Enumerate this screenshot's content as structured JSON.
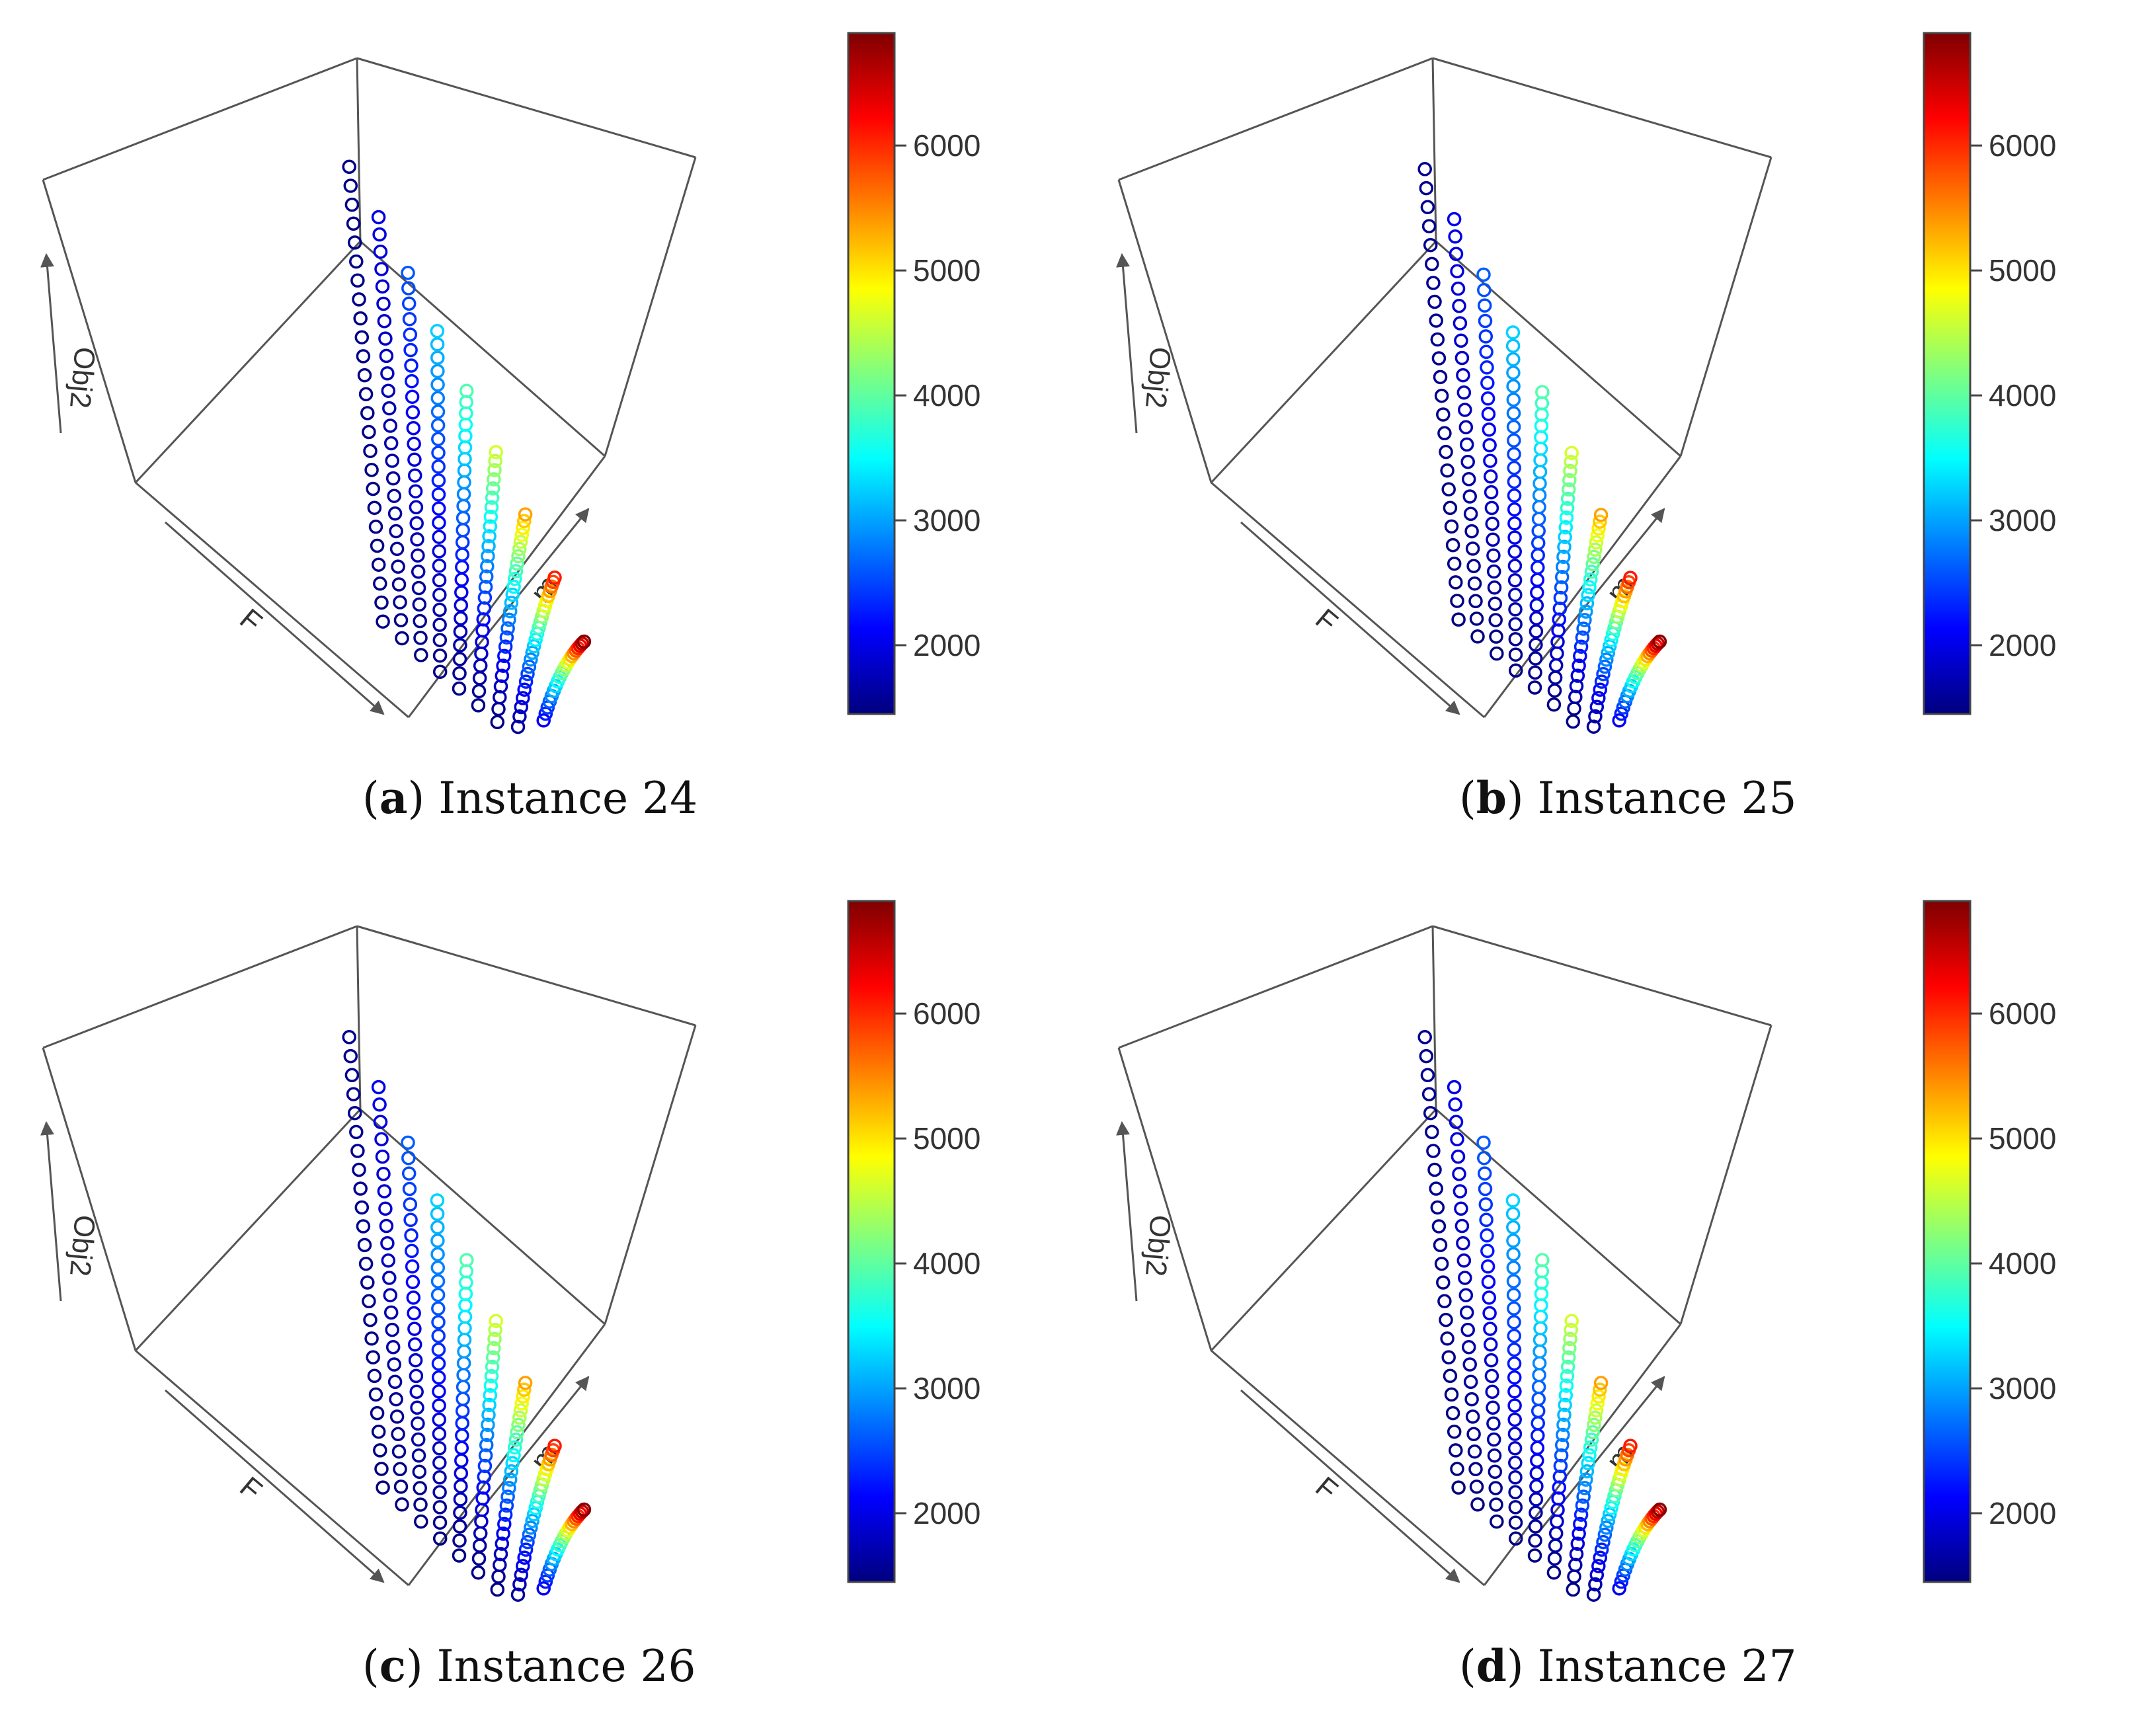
{
  "figure": {
    "colorscale": {
      "stops": [
        "#00007f",
        "#0000ff",
        "#007fff",
        "#00ffff",
        "#7fff7f",
        "#ffff00",
        "#ff7f00",
        "#ff0000",
        "#7f0000"
      ],
      "range": [
        1450,
        6900
      ]
    }
  },
  "chart_data": [
    {
      "type": "scatter",
      "subtype": "3d-scatter",
      "panel_letter": "a",
      "caption": "Instance 24",
      "axes": {
        "x": "F",
        "y": "m",
        "z": "Obj2"
      },
      "colorbar": {
        "ticks": [
          "2000",
          "3000",
          "4000",
          "5000",
          "6000"
        ],
        "tick_values": [
          2000,
          3000,
          4000,
          5000,
          6000
        ],
        "range": [
          1450,
          6900
        ]
      },
      "m_levels": 9,
      "points_per_m": 25,
      "obj2_base": 1500,
      "obj2_max": 6850,
      "dip": 0
    },
    {
      "type": "scatter",
      "subtype": "3d-scatter",
      "panel_letter": "b",
      "caption": "Instance 25",
      "axes": {
        "x": "F",
        "y": "m",
        "z": "Obj2"
      },
      "colorbar": {
        "ticks": [
          "2000",
          "3000",
          "4000",
          "5000",
          "6000"
        ],
        "tick_values": [
          2000,
          3000,
          4000,
          5000,
          6000
        ],
        "range": [
          1450,
          6900
        ]
      },
      "m_levels": 9,
      "points_per_m": 25,
      "obj2_base": 1500,
      "obj2_max": 6850,
      "dip": 1
    },
    {
      "type": "scatter",
      "subtype": "3d-scatter",
      "panel_letter": "c",
      "caption": "Instance 26",
      "axes": {
        "x": "F",
        "y": "m",
        "z": "Obj2"
      },
      "colorbar": {
        "ticks": [
          "2000",
          "3000",
          "4000",
          "5000",
          "6000"
        ],
        "tick_values": [
          2000,
          3000,
          4000,
          5000,
          6000
        ],
        "range": [
          1450,
          6900
        ]
      },
      "m_levels": 9,
      "points_per_m": 25,
      "obj2_base": 1500,
      "obj2_max": 6850,
      "dip": 1
    },
    {
      "type": "scatter",
      "subtype": "3d-scatter",
      "panel_letter": "d",
      "caption": "Instance 27",
      "axes": {
        "x": "F",
        "y": "m",
        "z": "Obj2"
      },
      "colorbar": {
        "ticks": [
          "2000",
          "3000",
          "4000",
          "5000",
          "6000"
        ],
        "tick_values": [
          2000,
          3000,
          4000,
          5000,
          6000
        ],
        "range": [
          1450,
          6900
        ]
      },
      "m_levels": 9,
      "points_per_m": 25,
      "obj2_base": 1500,
      "obj2_max": 6850,
      "dip": 1
    }
  ]
}
